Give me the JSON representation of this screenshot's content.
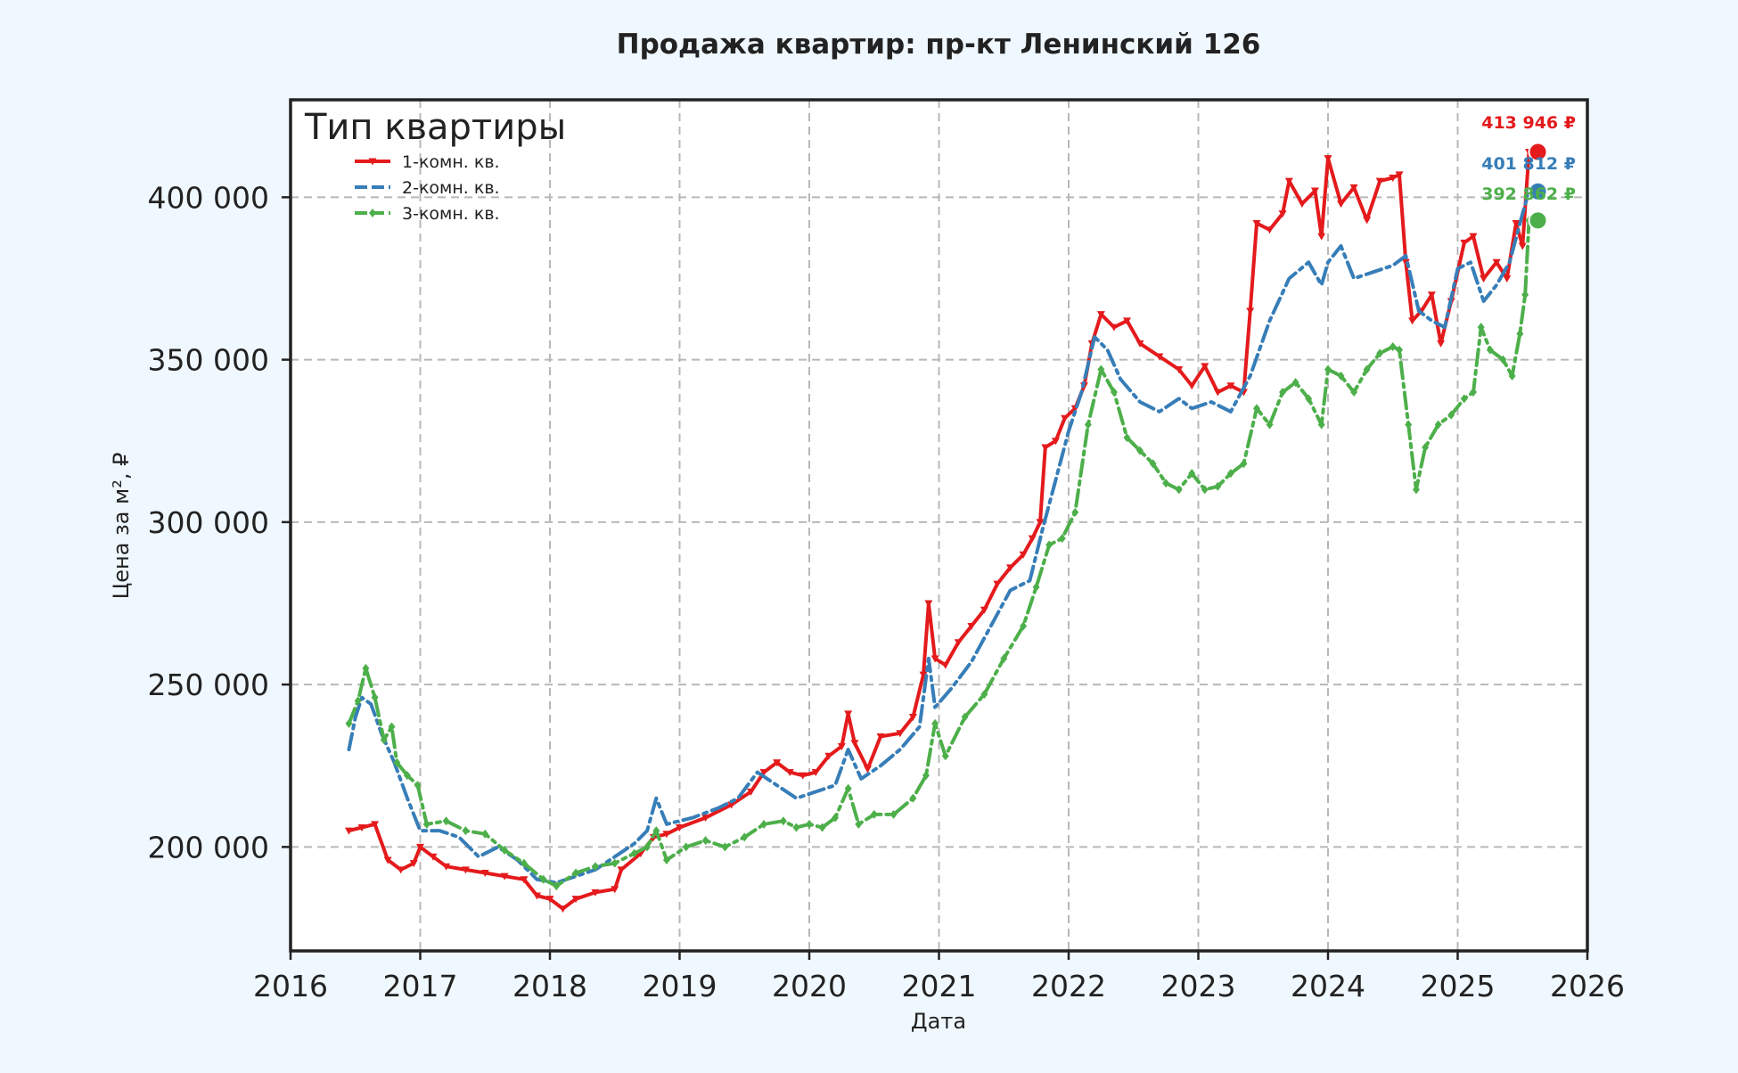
{
  "chart_data": {
    "type": "line",
    "title": "Продажа квартир: пр-кт Ленинский 126",
    "xlabel": "Дата",
    "ylabel": "Цена за м², ₽",
    "xlim": [
      2016.0,
      2026.0
    ],
    "ylim": [
      168000,
      430000
    ],
    "x_ticks": [
      "2016",
      "2017",
      "2018",
      "2019",
      "2020",
      "2021",
      "2022",
      "2023",
      "2024",
      "2025",
      "2026"
    ],
    "y_ticks": [
      {
        "value": 200000,
        "label": "200 000"
      },
      {
        "value": 250000,
        "label": "250 000"
      },
      {
        "value": 300000,
        "label": "300 000"
      },
      {
        "value": 350000,
        "label": "350 000"
      },
      {
        "value": 400000,
        "label": "400 000"
      }
    ],
    "grid": true,
    "legend": {
      "title": "Тип квартиры",
      "placement": "top-left"
    },
    "series": [
      {
        "name": "1-комн. кв.",
        "color": "#e41a1c",
        "dash": "solid",
        "marker": "triangle-down",
        "end_label": "413 946 ₽",
        "end_value": 413946,
        "points": [
          [
            2016.45,
            205000
          ],
          [
            2016.55,
            206000
          ],
          [
            2016.65,
            207000
          ],
          [
            2016.75,
            196000
          ],
          [
            2016.85,
            193000
          ],
          [
            2016.95,
            195000
          ],
          [
            2017.0,
            200000
          ],
          [
            2017.1,
            197000
          ],
          [
            2017.2,
            194000
          ],
          [
            2017.35,
            193000
          ],
          [
            2017.5,
            192000
          ],
          [
            2017.65,
            191000
          ],
          [
            2017.8,
            190000
          ],
          [
            2017.9,
            185000
          ],
          [
            2018.0,
            184000
          ],
          [
            2018.1,
            181000
          ],
          [
            2018.2,
            184000
          ],
          [
            2018.35,
            186000
          ],
          [
            2018.5,
            187000
          ],
          [
            2018.55,
            193000
          ],
          [
            2018.7,
            198000
          ],
          [
            2018.8,
            203000
          ],
          [
            2018.9,
            204000
          ],
          [
            2019.0,
            206000
          ],
          [
            2019.2,
            209000
          ],
          [
            2019.4,
            213000
          ],
          [
            2019.55,
            217000
          ],
          [
            2019.65,
            223000
          ],
          [
            2019.75,
            226000
          ],
          [
            2019.85,
            223000
          ],
          [
            2019.95,
            222000
          ],
          [
            2020.05,
            223000
          ],
          [
            2020.15,
            228000
          ],
          [
            2020.25,
            231000
          ],
          [
            2020.3,
            241000
          ],
          [
            2020.35,
            232000
          ],
          [
            2020.45,
            224000
          ],
          [
            2020.55,
            234000
          ],
          [
            2020.7,
            235000
          ],
          [
            2020.8,
            240000
          ],
          [
            2020.88,
            253000
          ],
          [
            2020.92,
            275000
          ],
          [
            2020.97,
            258000
          ],
          [
            2021.05,
            256000
          ],
          [
            2021.15,
            263000
          ],
          [
            2021.25,
            268000
          ],
          [
            2021.35,
            273000
          ],
          [
            2021.45,
            281000
          ],
          [
            2021.55,
            286000
          ],
          [
            2021.65,
            290000
          ],
          [
            2021.72,
            295000
          ],
          [
            2021.78,
            300000
          ],
          [
            2021.82,
            323000
          ],
          [
            2021.9,
            325000
          ],
          [
            2021.97,
            332000
          ],
          [
            2022.05,
            335000
          ],
          [
            2022.12,
            342000
          ],
          [
            2022.18,
            355000
          ],
          [
            2022.25,
            364000
          ],
          [
            2022.35,
            360000
          ],
          [
            2022.45,
            362000
          ],
          [
            2022.55,
            355000
          ],
          [
            2022.7,
            351000
          ],
          [
            2022.85,
            347000
          ],
          [
            2022.95,
            342000
          ],
          [
            2023.05,
            348000
          ],
          [
            2023.15,
            340000
          ],
          [
            2023.25,
            342000
          ],
          [
            2023.35,
            340000
          ],
          [
            2023.4,
            365000
          ],
          [
            2023.45,
            392000
          ],
          [
            2023.55,
            390000
          ],
          [
            2023.65,
            395000
          ],
          [
            2023.7,
            405000
          ],
          [
            2023.8,
            398000
          ],
          [
            2023.9,
            402000
          ],
          [
            2023.95,
            388000
          ],
          [
            2024.0,
            412000
          ],
          [
            2024.1,
            398000
          ],
          [
            2024.2,
            403000
          ],
          [
            2024.3,
            393000
          ],
          [
            2024.4,
            405000
          ],
          [
            2024.5,
            406000
          ],
          [
            2024.55,
            407000
          ],
          [
            2024.6,
            380000
          ],
          [
            2024.65,
            362000
          ],
          [
            2024.72,
            365000
          ],
          [
            2024.8,
            370000
          ],
          [
            2024.87,
            355000
          ],
          [
            2024.95,
            368000
          ],
          [
            2025.05,
            386000
          ],
          [
            2025.12,
            388000
          ],
          [
            2025.2,
            375000
          ],
          [
            2025.3,
            380000
          ],
          [
            2025.38,
            375000
          ],
          [
            2025.45,
            392000
          ],
          [
            2025.5,
            385000
          ],
          [
            2025.55,
            413946
          ]
        ]
      },
      {
        "name": "2-комн. кв.",
        "color": "#377eb8",
        "dash": "dashdot",
        "marker": "none",
        "end_label": "401 812 ₽",
        "end_value": 401812,
        "points": [
          [
            2016.45,
            230000
          ],
          [
            2016.5,
            240000
          ],
          [
            2016.55,
            246000
          ],
          [
            2016.62,
            244000
          ],
          [
            2016.7,
            235000
          ],
          [
            2016.8,
            226000
          ],
          [
            2016.9,
            215000
          ],
          [
            2017.0,
            205000
          ],
          [
            2017.15,
            205000
          ],
          [
            2017.3,
            203000
          ],
          [
            2017.45,
            197000
          ],
          [
            2017.6,
            200000
          ],
          [
            2017.75,
            196000
          ],
          [
            2017.9,
            190000
          ],
          [
            2018.05,
            189000
          ],
          [
            2018.2,
            191000
          ],
          [
            2018.35,
            193000
          ],
          [
            2018.5,
            197000
          ],
          [
            2018.65,
            201000
          ],
          [
            2018.75,
            205000
          ],
          [
            2018.82,
            215000
          ],
          [
            2018.9,
            207000
          ],
          [
            2019.1,
            209000
          ],
          [
            2019.3,
            212000
          ],
          [
            2019.45,
            215000
          ],
          [
            2019.6,
            223000
          ],
          [
            2019.75,
            219000
          ],
          [
            2019.9,
            215000
          ],
          [
            2020.05,
            217000
          ],
          [
            2020.2,
            219000
          ],
          [
            2020.3,
            230000
          ],
          [
            2020.4,
            221000
          ],
          [
            2020.55,
            225000
          ],
          [
            2020.7,
            230000
          ],
          [
            2020.85,
            237000
          ],
          [
            2020.92,
            258000
          ],
          [
            2020.97,
            243000
          ],
          [
            2021.1,
            249000
          ],
          [
            2021.25,
            257000
          ],
          [
            2021.4,
            268000
          ],
          [
            2021.55,
            279000
          ],
          [
            2021.7,
            282000
          ],
          [
            2021.8,
            298000
          ],
          [
            2021.9,
            313000
          ],
          [
            2022.0,
            328000
          ],
          [
            2022.1,
            340000
          ],
          [
            2022.2,
            357000
          ],
          [
            2022.3,
            353000
          ],
          [
            2022.4,
            344000
          ],
          [
            2022.55,
            337000
          ],
          [
            2022.7,
            334000
          ],
          [
            2022.85,
            338000
          ],
          [
            2022.95,
            335000
          ],
          [
            2023.1,
            337000
          ],
          [
            2023.25,
            334000
          ],
          [
            2023.4,
            345000
          ],
          [
            2023.55,
            362000
          ],
          [
            2023.7,
            375000
          ],
          [
            2023.85,
            380000
          ],
          [
            2023.95,
            373000
          ],
          [
            2024.0,
            380000
          ],
          [
            2024.1,
            385000
          ],
          [
            2024.2,
            375000
          ],
          [
            2024.35,
            377000
          ],
          [
            2024.5,
            379000
          ],
          [
            2024.6,
            382000
          ],
          [
            2024.7,
            365000
          ],
          [
            2024.8,
            362000
          ],
          [
            2024.9,
            360000
          ],
          [
            2025.0,
            378000
          ],
          [
            2025.1,
            380000
          ],
          [
            2025.2,
            368000
          ],
          [
            2025.3,
            373000
          ],
          [
            2025.4,
            380000
          ],
          [
            2025.5,
            395000
          ],
          [
            2025.55,
            401812
          ]
        ]
      },
      {
        "name": "3-комн. кв.",
        "color": "#4daf4a",
        "dash": "dashdot",
        "marker": "diamond",
        "end_label": "392 862 ₽",
        "end_value": 392862,
        "points": [
          [
            2016.45,
            238000
          ],
          [
            2016.52,
            245000
          ],
          [
            2016.58,
            255000
          ],
          [
            2016.65,
            246000
          ],
          [
            2016.72,
            233000
          ],
          [
            2016.78,
            237000
          ],
          [
            2016.82,
            226000
          ],
          [
            2016.9,
            222000
          ],
          [
            2016.98,
            219000
          ],
          [
            2017.05,
            207000
          ],
          [
            2017.2,
            208000
          ],
          [
            2017.35,
            205000
          ],
          [
            2017.5,
            204000
          ],
          [
            2017.65,
            199000
          ],
          [
            2017.8,
            195000
          ],
          [
            2017.95,
            190000
          ],
          [
            2018.05,
            188000
          ],
          [
            2018.2,
            192000
          ],
          [
            2018.35,
            194000
          ],
          [
            2018.5,
            195000
          ],
          [
            2018.65,
            198000
          ],
          [
            2018.75,
            200000
          ],
          [
            2018.82,
            205000
          ],
          [
            2018.9,
            196000
          ],
          [
            2019.05,
            200000
          ],
          [
            2019.2,
            202000
          ],
          [
            2019.35,
            200000
          ],
          [
            2019.5,
            203000
          ],
          [
            2019.65,
            207000
          ],
          [
            2019.8,
            208000
          ],
          [
            2019.9,
            206000
          ],
          [
            2020.0,
            207000
          ],
          [
            2020.1,
            206000
          ],
          [
            2020.2,
            209000
          ],
          [
            2020.3,
            218000
          ],
          [
            2020.38,
            207000
          ],
          [
            2020.5,
            210000
          ],
          [
            2020.65,
            210000
          ],
          [
            2020.8,
            215000
          ],
          [
            2020.9,
            222000
          ],
          [
            2020.97,
            238000
          ],
          [
            2021.05,
            228000
          ],
          [
            2021.2,
            240000
          ],
          [
            2021.35,
            247000
          ],
          [
            2021.5,
            258000
          ],
          [
            2021.65,
            268000
          ],
          [
            2021.75,
            280000
          ],
          [
            2021.85,
            293000
          ],
          [
            2021.95,
            295000
          ],
          [
            2022.05,
            303000
          ],
          [
            2022.15,
            330000
          ],
          [
            2022.25,
            347000
          ],
          [
            2022.35,
            340000
          ],
          [
            2022.45,
            326000
          ],
          [
            2022.55,
            322000
          ],
          [
            2022.65,
            318000
          ],
          [
            2022.75,
            312000
          ],
          [
            2022.85,
            310000
          ],
          [
            2022.95,
            315000
          ],
          [
            2023.05,
            310000
          ],
          [
            2023.15,
            311000
          ],
          [
            2023.25,
            315000
          ],
          [
            2023.35,
            318000
          ],
          [
            2023.45,
            335000
          ],
          [
            2023.55,
            330000
          ],
          [
            2023.65,
            340000
          ],
          [
            2023.75,
            343000
          ],
          [
            2023.85,
            338000
          ],
          [
            2023.95,
            330000
          ],
          [
            2024.0,
            347000
          ],
          [
            2024.1,
            345000
          ],
          [
            2024.2,
            340000
          ],
          [
            2024.3,
            347000
          ],
          [
            2024.4,
            352000
          ],
          [
            2024.5,
            354000
          ],
          [
            2024.55,
            353000
          ],
          [
            2024.62,
            330000
          ],
          [
            2024.68,
            310000
          ],
          [
            2024.75,
            323000
          ],
          [
            2024.85,
            330000
          ],
          [
            2024.95,
            333000
          ],
          [
            2025.05,
            338000
          ],
          [
            2025.12,
            340000
          ],
          [
            2025.18,
            360000
          ],
          [
            2025.25,
            353000
          ],
          [
            2025.35,
            350000
          ],
          [
            2025.42,
            345000
          ],
          [
            2025.48,
            358000
          ],
          [
            2025.52,
            370000
          ],
          [
            2025.55,
            392862
          ]
        ]
      }
    ]
  }
}
